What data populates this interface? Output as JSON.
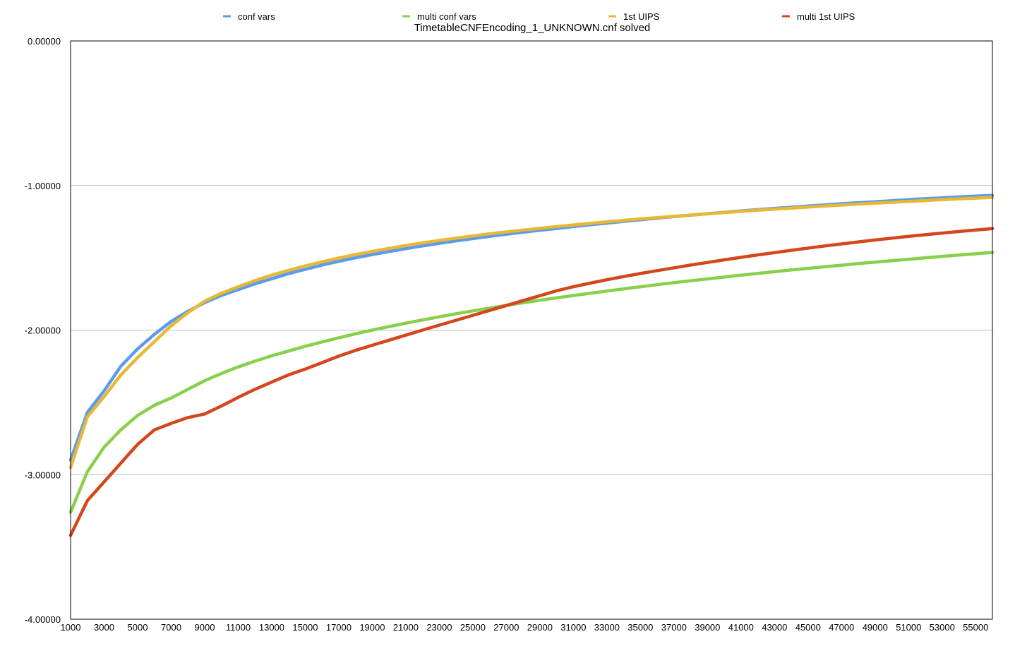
{
  "chart_data": {
    "type": "line",
    "title": "TimetableCNFEncoding_1_UNKNOWN.cnf solved",
    "xlabel": "",
    "ylabel": "",
    "ylim": [
      -4,
      0
    ],
    "xlim": [
      1000,
      56000
    ],
    "grid": true,
    "legend_position": "top",
    "y_ticks": [
      "0.00000",
      "-1.00000",
      "-2.00000",
      "-3.00000",
      "-4.00000"
    ],
    "y_tick_values": [
      0,
      -1,
      -2,
      -3,
      -4
    ],
    "x_ticks": [
      "1000",
      "3000",
      "5000",
      "7000",
      "9000",
      "11000",
      "13000",
      "15000",
      "17000",
      "19000",
      "21000",
      "23000",
      "25000",
      "27000",
      "29000",
      "31000",
      "33000",
      "35000",
      "37000",
      "39000",
      "41000",
      "43000",
      "45000",
      "47000",
      "49000",
      "51000",
      "53000",
      "55000"
    ],
    "x": [
      1000,
      2000,
      3000,
      4000,
      5000,
      6000,
      7000,
      8000,
      9000,
      10000,
      11000,
      12000,
      13000,
      14000,
      15000,
      16000,
      17000,
      18000,
      19000,
      20000,
      21000,
      22000,
      23000,
      24000,
      25000,
      26000,
      27000,
      28000,
      29000,
      30000,
      31000,
      32000,
      33000,
      34000,
      35000,
      36000,
      37000,
      38000,
      39000,
      40000,
      41000,
      42000,
      43000,
      44000,
      45000,
      46000,
      47000,
      48000,
      49000,
      50000,
      51000,
      52000,
      53000,
      54000,
      55000,
      56000
    ],
    "series": [
      {
        "name": "conf vars",
        "color": "#5b9bef",
        "values": [
          -2.9,
          -2.57,
          -2.42,
          -2.25,
          -2.13,
          -2.03,
          -1.94,
          -1.87,
          -1.81,
          -1.76,
          -1.72,
          -1.68,
          -1.645,
          -1.61,
          -1.58,
          -1.55,
          -1.525,
          -1.5,
          -1.478,
          -1.457,
          -1.437,
          -1.418,
          -1.4,
          -1.383,
          -1.367,
          -1.352,
          -1.337,
          -1.323,
          -1.31,
          -1.297,
          -1.284,
          -1.272,
          -1.26,
          -1.248,
          -1.237,
          -1.226,
          -1.215,
          -1.205,
          -1.195,
          -1.185,
          -1.176,
          -1.167,
          -1.158,
          -1.15,
          -1.142,
          -1.134,
          -1.126,
          -1.119,
          -1.112,
          -1.105,
          -1.098,
          -1.091,
          -1.085,
          -1.079,
          -1.073,
          -1.068
        ]
      },
      {
        "name": "multi conf vars",
        "color": "#88d04b",
        "values": [
          -3.26,
          -2.98,
          -2.81,
          -2.69,
          -2.59,
          -2.52,
          -2.47,
          -2.41,
          -2.35,
          -2.3,
          -2.255,
          -2.215,
          -2.178,
          -2.145,
          -2.112,
          -2.082,
          -2.053,
          -2.026,
          -2.0,
          -1.976,
          -1.952,
          -1.93,
          -1.908,
          -1.887,
          -1.867,
          -1.848,
          -1.829,
          -1.811,
          -1.794,
          -1.777,
          -1.761,
          -1.745,
          -1.73,
          -1.715,
          -1.7,
          -1.686,
          -1.672,
          -1.659,
          -1.646,
          -1.633,
          -1.62,
          -1.608,
          -1.596,
          -1.584,
          -1.573,
          -1.562,
          -1.551,
          -1.54,
          -1.53,
          -1.52,
          -1.51,
          -1.5,
          -1.49,
          -1.481,
          -1.472,
          -1.463
        ]
      },
      {
        "name": "1st UIPS",
        "color": "#e6b834",
        "values": [
          -2.95,
          -2.6,
          -2.46,
          -2.31,
          -2.19,
          -2.08,
          -1.97,
          -1.88,
          -1.8,
          -1.745,
          -1.7,
          -1.658,
          -1.62,
          -1.587,
          -1.556,
          -1.528,
          -1.502,
          -1.478,
          -1.456,
          -1.435,
          -1.415,
          -1.397,
          -1.38,
          -1.364,
          -1.349,
          -1.334,
          -1.321,
          -1.308,
          -1.296,
          -1.284,
          -1.273,
          -1.262,
          -1.251,
          -1.241,
          -1.231,
          -1.222,
          -1.213,
          -1.204,
          -1.195,
          -1.187,
          -1.179,
          -1.171,
          -1.163,
          -1.156,
          -1.149,
          -1.142,
          -1.135,
          -1.128,
          -1.122,
          -1.116,
          -1.11,
          -1.104,
          -1.098,
          -1.092,
          -1.087,
          -1.082
        ]
      },
      {
        "name": "multi 1st UIPS",
        "color": "#d4461c",
        "values": [
          -3.42,
          -3.18,
          -3.05,
          -2.92,
          -2.79,
          -2.69,
          -2.645,
          -2.605,
          -2.58,
          -2.525,
          -2.465,
          -2.41,
          -2.36,
          -2.31,
          -2.27,
          -2.225,
          -2.18,
          -2.14,
          -2.105,
          -2.07,
          -2.035,
          -2.0,
          -1.966,
          -1.932,
          -1.898,
          -1.864,
          -1.83,
          -1.796,
          -1.762,
          -1.728,
          -1.7,
          -1.675,
          -1.652,
          -1.63,
          -1.609,
          -1.589,
          -1.569,
          -1.55,
          -1.532,
          -1.514,
          -1.497,
          -1.48,
          -1.464,
          -1.448,
          -1.433,
          -1.418,
          -1.404,
          -1.39,
          -1.377,
          -1.364,
          -1.352,
          -1.34,
          -1.329,
          -1.318,
          -1.308,
          -1.298
        ]
      }
    ]
  }
}
